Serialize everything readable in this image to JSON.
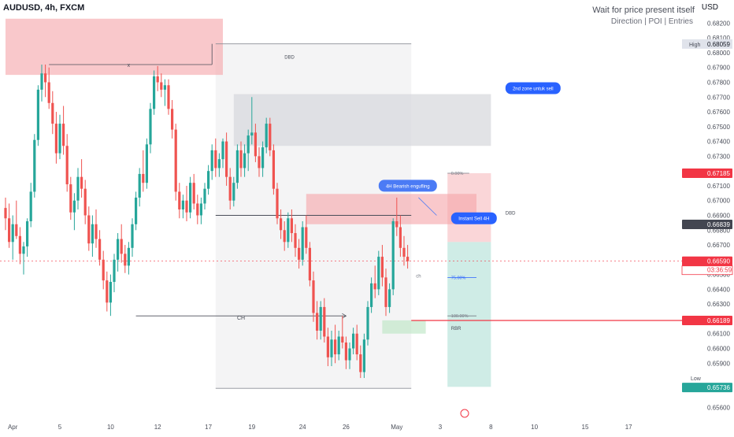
{
  "header": {
    "symbol": "AUDUSD, 4h, FXCM",
    "currency": "USD",
    "note_title": "Wait for price present itself",
    "note_subtitle": "Direction | POI | Entries"
  },
  "colors": {
    "bull": "#26a69a",
    "bear": "#ef5350",
    "supply_zone": "#f5a3a8",
    "neutral_zone": "#d8d9dd",
    "demand_zone": "#b9e5c2",
    "marker_red": "#f23645",
    "marker_dark": "#434651",
    "callout_blue": "#2962ff",
    "target_zone": "#a8dcd2"
  },
  "chart_data": {
    "type": "candlestick",
    "y_axis": {
      "min": 0.6555,
      "max": 0.6825,
      "ticks": [
        "0.68200",
        "0.68100",
        "0.68000",
        "0.67900",
        "0.67800",
        "0.67700",
        "0.67600",
        "0.67500",
        "0.67400",
        "0.67300",
        "0.67100",
        "0.67000",
        "0.66900",
        "0.66800",
        "0.66700",
        "0.66500",
        "0.66400",
        "0.66300",
        "0.66200",
        "0.66100",
        "0.66000",
        "0.65900",
        "0.65800",
        "0.65600"
      ]
    },
    "x_axis": {
      "labels": [
        {
          "text": "Apr",
          "index": 2
        },
        {
          "text": "5",
          "index": 15
        },
        {
          "text": "10",
          "index": 29
        },
        {
          "text": "12",
          "index": 42
        },
        {
          "text": "17",
          "index": 56
        },
        {
          "text": "19",
          "index": 68
        },
        {
          "text": "24",
          "index": 82
        },
        {
          "text": "26",
          "index": 94
        },
        {
          "text": "May",
          "index": 108
        },
        {
          "text": "3",
          "index": 120
        },
        {
          "text": "8",
          "index": 134
        },
        {
          "text": "10",
          "index": 146
        },
        {
          "text": "15",
          "index": 160
        },
        {
          "text": "17",
          "index": 172
        }
      ]
    },
    "candles": [
      [
        0.6695,
        0.6702,
        0.668,
        0.6688
      ],
      [
        0.6688,
        0.6698,
        0.6668,
        0.6672
      ],
      [
        0.6672,
        0.669,
        0.666,
        0.6684
      ],
      [
        0.6684,
        0.67,
        0.6674,
        0.6676
      ],
      [
        0.6676,
        0.6682,
        0.6657,
        0.6664
      ],
      [
        0.6664,
        0.6672,
        0.665,
        0.6669
      ],
      [
        0.6669,
        0.6688,
        0.6662,
        0.6686
      ],
      [
        0.6686,
        0.6712,
        0.6682,
        0.6706
      ],
      [
        0.6706,
        0.6745,
        0.6702,
        0.6741
      ],
      [
        0.6741,
        0.6778,
        0.6737,
        0.6775
      ],
      [
        0.6775,
        0.6792,
        0.6767,
        0.6786
      ],
      [
        0.6786,
        0.6792,
        0.677,
        0.678
      ],
      [
        0.678,
        0.679,
        0.6762,
        0.6766
      ],
      [
        0.6766,
        0.6774,
        0.6745,
        0.6752
      ],
      [
        0.6752,
        0.676,
        0.6725,
        0.6732
      ],
      [
        0.6732,
        0.6758,
        0.6728,
        0.6752
      ],
      [
        0.6752,
        0.6764,
        0.6731,
        0.6737
      ],
      [
        0.6737,
        0.6745,
        0.6706,
        0.6711
      ],
      [
        0.6711,
        0.6716,
        0.6687,
        0.6692
      ],
      [
        0.6692,
        0.6705,
        0.668,
        0.67
      ],
      [
        0.67,
        0.6722,
        0.6694,
        0.6716
      ],
      [
        0.6716,
        0.6728,
        0.6702,
        0.6708
      ],
      [
        0.6708,
        0.6714,
        0.6684,
        0.669
      ],
      [
        0.669,
        0.6696,
        0.6666,
        0.6671
      ],
      [
        0.6671,
        0.669,
        0.6662,
        0.6684
      ],
      [
        0.6684,
        0.6694,
        0.6668,
        0.6674
      ],
      [
        0.6674,
        0.668,
        0.6656,
        0.666
      ],
      [
        0.666,
        0.6666,
        0.664,
        0.6646
      ],
      [
        0.6646,
        0.6652,
        0.6625,
        0.6631
      ],
      [
        0.6631,
        0.665,
        0.6622,
        0.6645
      ],
      [
        0.6645,
        0.6664,
        0.6638,
        0.666
      ],
      [
        0.666,
        0.6678,
        0.6652,
        0.6674
      ],
      [
        0.6674,
        0.6684,
        0.6658,
        0.6664
      ],
      [
        0.6664,
        0.667,
        0.6651,
        0.6656
      ],
      [
        0.6656,
        0.6672,
        0.665,
        0.6668
      ],
      [
        0.6668,
        0.6688,
        0.6662,
        0.6684
      ],
      [
        0.6684,
        0.6706,
        0.668,
        0.6702
      ],
      [
        0.6702,
        0.6722,
        0.6696,
        0.6718
      ],
      [
        0.6718,
        0.6734,
        0.6706,
        0.6712
      ],
      [
        0.6712,
        0.6742,
        0.6708,
        0.6738
      ],
      [
        0.6738,
        0.6766,
        0.6732,
        0.6762
      ],
      [
        0.6762,
        0.6788,
        0.6758,
        0.6784
      ],
      [
        0.6784,
        0.6791,
        0.6774,
        0.678
      ],
      [
        0.678,
        0.6786,
        0.677,
        0.6775
      ],
      [
        0.6775,
        0.6782,
        0.6764,
        0.6778
      ],
      [
        0.6778,
        0.6782,
        0.6758,
        0.6762
      ],
      [
        0.6762,
        0.6768,
        0.6742,
        0.6748
      ],
      [
        0.6748,
        0.6752,
        0.67,
        0.6706
      ],
      [
        0.6706,
        0.6712,
        0.6688,
        0.6694
      ],
      [
        0.6694,
        0.6704,
        0.6688,
        0.67
      ],
      [
        0.67,
        0.671,
        0.6686,
        0.6692
      ],
      [
        0.6692,
        0.6716,
        0.6688,
        0.6712
      ],
      [
        0.6712,
        0.6718,
        0.6694,
        0.6698
      ],
      [
        0.6698,
        0.6704,
        0.6684,
        0.669
      ],
      [
        0.669,
        0.6702,
        0.6684,
        0.6698
      ],
      [
        0.6698,
        0.6712,
        0.6694,
        0.6708
      ],
      [
        0.6708,
        0.6724,
        0.6704,
        0.672
      ],
      [
        0.672,
        0.6738,
        0.6714,
        0.6734
      ],
      [
        0.6734,
        0.6742,
        0.6716,
        0.6722
      ],
      [
        0.6722,
        0.6732,
        0.6716,
        0.6728
      ],
      [
        0.6728,
        0.6742,
        0.6722,
        0.674
      ],
      [
        0.674,
        0.6746,
        0.671,
        0.6716
      ],
      [
        0.6716,
        0.6722,
        0.6694,
        0.67
      ],
      [
        0.67,
        0.6716,
        0.6696,
        0.6712
      ],
      [
        0.6712,
        0.6738,
        0.6708,
        0.6734
      ],
      [
        0.6734,
        0.674,
        0.6716,
        0.6722
      ],
      [
        0.6722,
        0.6738,
        0.6716,
        0.6732
      ],
      [
        0.6732,
        0.6748,
        0.672,
        0.6744
      ],
      [
        0.6744,
        0.677,
        0.6738,
        0.6746
      ],
      [
        0.6746,
        0.6752,
        0.6726,
        0.673
      ],
      [
        0.673,
        0.6736,
        0.6716,
        0.6722
      ],
      [
        0.6722,
        0.674,
        0.6716,
        0.6736
      ],
      [
        0.6736,
        0.6756,
        0.6732,
        0.6752
      ],
      [
        0.6752,
        0.6756,
        0.673,
        0.6734
      ],
      [
        0.6734,
        0.6738,
        0.6704,
        0.6708
      ],
      [
        0.6708,
        0.6712,
        0.6684,
        0.6688
      ],
      [
        0.6688,
        0.6694,
        0.6674,
        0.668
      ],
      [
        0.668,
        0.6686,
        0.6666,
        0.6672
      ],
      [
        0.6672,
        0.6692,
        0.6668,
        0.6688
      ],
      [
        0.6688,
        0.6694,
        0.6672,
        0.6678
      ],
      [
        0.6678,
        0.6684,
        0.6662,
        0.6668
      ],
      [
        0.6668,
        0.6674,
        0.6654,
        0.666
      ],
      [
        0.666,
        0.6686,
        0.6656,
        0.6682
      ],
      [
        0.6682,
        0.669,
        0.6664,
        0.6668
      ],
      [
        0.6668,
        0.6672,
        0.6642,
        0.6646
      ],
      [
        0.6646,
        0.6652,
        0.6618,
        0.6624
      ],
      [
        0.6624,
        0.6632,
        0.6606,
        0.6612
      ],
      [
        0.6612,
        0.6632,
        0.6606,
        0.6628
      ],
      [
        0.6628,
        0.6634,
        0.6604,
        0.6608
      ],
      [
        0.6608,
        0.6614,
        0.6588,
        0.6594
      ],
      [
        0.6594,
        0.6612,
        0.6588,
        0.6606
      ],
      [
        0.6606,
        0.6616,
        0.659,
        0.6596
      ],
      [
        0.6596,
        0.6612,
        0.6592,
        0.6608
      ],
      [
        0.6608,
        0.6622,
        0.66,
        0.6604
      ],
      [
        0.6604,
        0.6608,
        0.6586,
        0.6592
      ],
      [
        0.6592,
        0.6604,
        0.6586,
        0.66
      ],
      [
        0.66,
        0.6614,
        0.6596,
        0.661
      ],
      [
        0.661,
        0.6616,
        0.6592,
        0.6596
      ],
      [
        0.6596,
        0.6602,
        0.658,
        0.6584
      ],
      [
        0.6584,
        0.661,
        0.658,
        0.6606
      ],
      [
        0.6606,
        0.6632,
        0.6602,
        0.6628
      ],
      [
        0.6628,
        0.6648,
        0.6624,
        0.6644
      ],
      [
        0.6644,
        0.6656,
        0.6634,
        0.664
      ],
      [
        0.664,
        0.6666,
        0.6636,
        0.6662
      ],
      [
        0.6662,
        0.667,
        0.6642,
        0.6648
      ],
      [
        0.6648,
        0.6654,
        0.6622,
        0.6628
      ],
      [
        0.6628,
        0.6644,
        0.6624,
        0.664
      ],
      [
        0.664,
        0.6688,
        0.6636,
        0.6686
      ],
      [
        0.6686,
        0.6702,
        0.6676,
        0.6682
      ],
      [
        0.6682,
        0.669,
        0.6662,
        0.6668
      ],
      [
        0.6668,
        0.6676,
        0.6656,
        0.6662
      ],
      [
        0.6662,
        0.667,
        0.6654,
        0.6659
      ]
    ],
    "horizontal_levels": [
      {
        "name": "High",
        "value": 0.68059,
        "label": "0.68059"
      },
      {
        "name": "zone-top",
        "value": 0.67185,
        "label": "0.67185"
      },
      {
        "name": "entry",
        "value": 0.66839,
        "label": "0.66839"
      },
      {
        "name": "last-price",
        "value": 0.6659,
        "label": "0.66590",
        "countdown": "03:36:59"
      },
      {
        "name": "ob-level",
        "value": 0.66189,
        "label": "0.66189"
      },
      {
        "name": "Low",
        "value": 0.65736,
        "label": "0.65736"
      }
    ],
    "zones": [
      {
        "name": "dbd-zone-top",
        "label": "DBD",
        "kind": "supply",
        "start": 0,
        "end": 60,
        "top": 0.6823,
        "bottom": 0.6785
      },
      {
        "name": "grey-zone",
        "label": "",
        "kind": "neutral",
        "start": 63,
        "end": 134,
        "top": 0.6772,
        "bottom": 0.6737
      },
      {
        "name": "dbd-zone-mid",
        "label": "DBD",
        "kind": "supply",
        "start": 83,
        "end": 130,
        "top": 0.67045,
        "bottom": 0.6684
      },
      {
        "name": "rbr-zone",
        "label": "RBR",
        "kind": "demand",
        "start": 104,
        "end": 116,
        "top": 0.6619,
        "bottom": 0.661
      }
    ],
    "annotations": {
      "x_label": "x",
      "ch_label": "CH",
      "ch_small_label": "ch",
      "dbd_label": "DBD",
      "rbr_label": "RBR",
      "callout_bearish": "4H Bearish engufling",
      "callout_sell": "Instant Sell 4H",
      "callout_zone": "2nd zone untuk sell",
      "fib_0": "0.00%",
      "fib_75": "75.00%",
      "fib_100": "100.00%",
      "high_label": "High",
      "low_label": "Low"
    }
  }
}
